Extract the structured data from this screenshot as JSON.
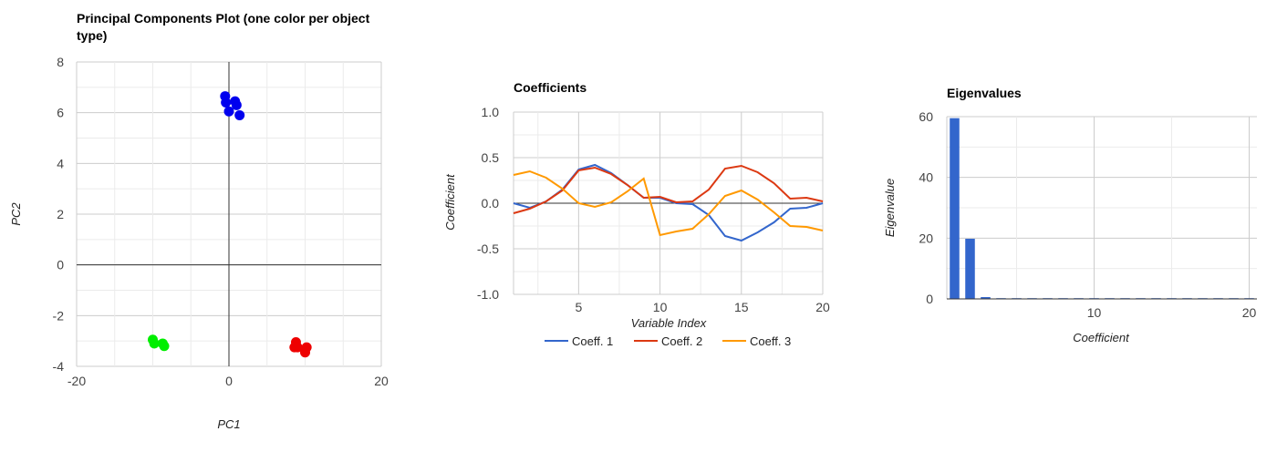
{
  "chart_data": [
    {
      "type": "scatter",
      "title_lines": [
        "Principal Components Plot (one color per object",
        "type)"
      ],
      "xlabel": "PC1",
      "ylabel": "PC2",
      "xlim": [
        -20,
        20
      ],
      "ylim": [
        -4,
        8
      ],
      "x_ticks": [
        -20,
        0,
        20
      ],
      "y_ticks": [
        -4,
        -2,
        0,
        2,
        4,
        6,
        8
      ],
      "grid": true,
      "legend": "none",
      "series": [
        {
          "color": "#0000ee",
          "points": [
            [
              -0.5,
              6.65
            ],
            [
              -0.4,
              6.4
            ],
            [
              0,
              6.05
            ],
            [
              0.8,
              6.45
            ],
            [
              1.0,
              6.3
            ],
            [
              1.4,
              5.9
            ]
          ]
        },
        {
          "color": "#00ee00",
          "points": [
            [
              -10,
              -2.95
            ],
            [
              -9.8,
              -3.1
            ],
            [
              -8.7,
              -3.1
            ],
            [
              -8.5,
              -3.2
            ]
          ]
        },
        {
          "color": "#ee0000",
          "points": [
            [
              8.8,
              -3.05
            ],
            [
              8.6,
              -3.25
            ],
            [
              9.0,
              -3.25
            ],
            [
              10.2,
              -3.25
            ],
            [
              10.0,
              -3.45
            ]
          ]
        }
      ]
    },
    {
      "type": "line",
      "title": "Coefficients",
      "xlabel": "Variable Index",
      "ylabel": "Coefficient",
      "xlim": [
        1,
        20
      ],
      "ylim": [
        -1.0,
        1.0
      ],
      "x_ticks": [
        5,
        10,
        15,
        20
      ],
      "y_ticks": [
        "1.0",
        "0.5",
        "0.0",
        "-0.5",
        "-1.0"
      ],
      "grid": true,
      "legend": "bottom",
      "x": [
        1,
        2,
        3,
        4,
        5,
        6,
        7,
        8,
        9,
        10,
        11,
        12,
        13,
        14,
        15,
        16,
        17,
        18,
        19,
        20
      ],
      "series": [
        {
          "name": "Coeff. 1",
          "color": "#3366cc",
          "values": [
            0.0,
            -0.05,
            0.02,
            0.15,
            0.37,
            0.42,
            0.33,
            0.2,
            0.06,
            0.06,
            0.0,
            -0.01,
            -0.13,
            -0.36,
            -0.41,
            -0.32,
            -0.21,
            -0.06,
            -0.05,
            0.0
          ]
        },
        {
          "name": "Coeff. 2",
          "color": "#dc3912",
          "values": [
            -0.11,
            -0.06,
            0.02,
            0.14,
            0.36,
            0.39,
            0.32,
            0.2,
            0.06,
            0.07,
            0.01,
            0.02,
            0.15,
            0.38,
            0.41,
            0.34,
            0.22,
            0.05,
            0.06,
            0.02
          ]
        },
        {
          "name": "Coeff. 3",
          "color": "#ff9900",
          "values": [
            0.31,
            0.35,
            0.28,
            0.16,
            0.0,
            -0.04,
            0.01,
            0.13,
            0.27,
            -0.35,
            -0.31,
            -0.28,
            -0.12,
            0.08,
            0.14,
            0.04,
            -0.1,
            -0.25,
            -0.26,
            -0.3
          ]
        }
      ]
    },
    {
      "type": "bar",
      "title": "Eigenvalues",
      "xlabel": "Coefficient",
      "ylabel": "Eigenvalue",
      "xlim": [
        0.5,
        20.5
      ],
      "ylim": [
        0,
        60
      ],
      "x_ticks": [
        10,
        20
      ],
      "y_ticks": [
        0,
        20,
        40,
        60
      ],
      "grid": true,
      "legend": "none",
      "bar_color": "#3366cc",
      "x": [
        1,
        2,
        3,
        4,
        5,
        6,
        7,
        8,
        9,
        10,
        11,
        12,
        13,
        14,
        15,
        16,
        17,
        18,
        19,
        20
      ],
      "values": [
        59.5,
        19.8,
        0.6,
        0.15,
        0.1,
        0.08,
        0.06,
        0.05,
        0.04,
        0.03,
        0.03,
        0.02,
        0.02,
        0.02,
        0.01,
        0.01,
        0.01,
        0.01,
        0.01,
        0.01
      ]
    }
  ]
}
